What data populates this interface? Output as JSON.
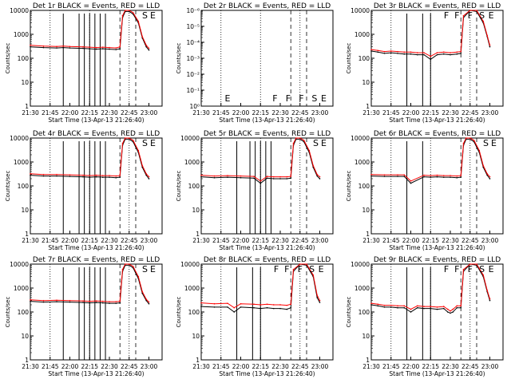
{
  "figure": {
    "colors": {
      "events": "#000000",
      "lld": "#ff0000",
      "background": "#ffffff"
    },
    "xlabel": "Start Time (13-Apr-13 21:26:40)",
    "ylabel": "Counts/sec",
    "xticks": [
      "21:30",
      "21:45",
      "22:00",
      "22:15",
      "22:30",
      "22:45",
      "23:00"
    ],
    "xrange_minutes": [
      0,
      100
    ],
    "marker_lines": {
      "dotted": [
        "21:45",
        "22:15",
        "22:45"
      ],
      "dashed": [
        "22:38",
        "22:50"
      ]
    }
  },
  "chart_data": [
    {
      "type": "line",
      "title": "Det 1r BLACK = Events, RED = LLD",
      "yscale": "log",
      "ylim": [
        1,
        10000
      ],
      "yticks": [
        "1",
        "10",
        "100",
        "1000",
        "10000"
      ],
      "flags": [
        "S",
        "E"
      ],
      "series": [
        {
          "name": "Events",
          "x": [
            0,
            10,
            20,
            25,
            30,
            40,
            45,
            50,
            55,
            60,
            65,
            68,
            70,
            72,
            75,
            78,
            82,
            85,
            88,
            90
          ],
          "y": [
            300,
            280,
            270,
            280,
            270,
            260,
            250,
            240,
            250,
            240,
            230,
            250,
            5000,
            9000,
            9000,
            7000,
            3000,
            700,
            300,
            220
          ]
        },
        {
          "name": "LLD",
          "x": [
            0,
            10,
            20,
            25,
            30,
            40,
            45,
            50,
            55,
            60,
            65,
            68,
            70,
            72,
            75,
            78,
            82,
            85,
            88,
            90
          ],
          "y": [
            350,
            320,
            310,
            320,
            310,
            300,
            290,
            280,
            290,
            280,
            270,
            300,
            6000,
            11000,
            11000,
            8000,
            3500,
            800,
            350,
            260
          ]
        }
      ],
      "gaps": [
        25,
        37,
        41,
        45,
        49,
        53,
        57
      ]
    },
    {
      "type": "line",
      "title": "Det 2r BLACK = Events, RED = LLD",
      "yscale": "log",
      "ylim": [
        1,
        1e-06
      ],
      "yticks": [
        "10⁰",
        "10⁻¹",
        "10⁻²",
        "10⁻³",
        "10⁻⁴",
        "10⁻⁵",
        "10⁻⁶"
      ],
      "flags": [
        "E",
        "F",
        "F",
        "F",
        "S",
        "E"
      ],
      "series": [],
      "gaps": []
    },
    {
      "type": "line",
      "title": "Det 3r BLACK = Events, RED = LLD",
      "yscale": "log",
      "ylim": [
        1,
        10000
      ],
      "yticks": [
        "1",
        "10",
        "100",
        "1000",
        "10000"
      ],
      "flags": [
        "F",
        "F",
        "F",
        "S",
        "E"
      ],
      "series": [
        {
          "name": "Events",
          "x": [
            0,
            5,
            10,
            15,
            20,
            25,
            30,
            35,
            40,
            45,
            50,
            55,
            60,
            65,
            68,
            70,
            75,
            80,
            85,
            88,
            90
          ],
          "y": [
            200,
            180,
            160,
            170,
            160,
            150,
            150,
            140,
            140,
            90,
            140,
            150,
            140,
            150,
            160,
            5000,
            10000,
            9000,
            3000,
            800,
            300
          ]
        },
        {
          "name": "LLD",
          "x": [
            0,
            5,
            10,
            15,
            20,
            25,
            30,
            35,
            40,
            45,
            50,
            55,
            60,
            65,
            68,
            70,
            75,
            80,
            85,
            88,
            90
          ],
          "y": [
            230,
            210,
            190,
            200,
            190,
            180,
            180,
            170,
            170,
            120,
            170,
            180,
            170,
            180,
            190,
            6000,
            12000,
            10000,
            3500,
            900,
            350
          ]
        }
      ],
      "gaps": [
        27,
        39,
        45
      ]
    },
    {
      "type": "line",
      "title": "Det 4r BLACK = Events, RED = LLD",
      "yscale": "log",
      "ylim": [
        1,
        10000
      ],
      "yticks": [
        "1",
        "10",
        "100",
        "1000",
        "10000"
      ],
      "flags": [
        "S",
        "E"
      ],
      "series": [
        {
          "name": "Events",
          "x": [
            0,
            10,
            20,
            30,
            40,
            45,
            50,
            55,
            60,
            65,
            68,
            70,
            72,
            75,
            78,
            82,
            85,
            88,
            90
          ],
          "y": [
            280,
            260,
            260,
            250,
            240,
            230,
            240,
            230,
            230,
            220,
            230,
            5000,
            9000,
            9000,
            7000,
            2500,
            600,
            280,
            200
          ]
        },
        {
          "name": "LLD",
          "x": [
            0,
            10,
            20,
            30,
            40,
            45,
            50,
            55,
            60,
            65,
            68,
            70,
            72,
            75,
            78,
            82,
            85,
            88,
            90
          ],
          "y": [
            320,
            300,
            300,
            290,
            280,
            270,
            280,
            270,
            270,
            260,
            270,
            6000,
            11000,
            11000,
            8000,
            3000,
            700,
            320,
            240
          ]
        }
      ],
      "gaps": [
        25,
        37,
        41,
        45,
        49,
        53,
        57
      ]
    },
    {
      "type": "line",
      "title": "Det 5r BLACK = Events, RED = LLD",
      "yscale": "log",
      "ylim": [
        1,
        10000
      ],
      "yticks": [
        "1",
        "10",
        "100",
        "1000",
        "10000"
      ],
      "flags": [
        "S",
        "E"
      ],
      "series": [
        {
          "name": "Events",
          "x": [
            0,
            10,
            20,
            30,
            40,
            45,
            50,
            55,
            60,
            65,
            68,
            70,
            72,
            75,
            78,
            82,
            85,
            88,
            90
          ],
          "y": [
            240,
            220,
            230,
            220,
            210,
            130,
            210,
            200,
            200,
            200,
            210,
            5000,
            9000,
            9000,
            7000,
            2500,
            600,
            260,
            200
          ]
        },
        {
          "name": "LLD",
          "x": [
            0,
            10,
            20,
            30,
            40,
            45,
            50,
            55,
            60,
            65,
            68,
            70,
            72,
            75,
            78,
            82,
            85,
            88,
            90
          ],
          "y": [
            280,
            260,
            270,
            260,
            250,
            160,
            250,
            240,
            240,
            240,
            250,
            6000,
            11000,
            11000,
            8000,
            3000,
            700,
            300,
            240
          ]
        }
      ],
      "gaps": [
        27,
        37,
        41,
        45,
        49,
        53
      ]
    },
    {
      "type": "line",
      "title": "Det 6r BLACK = Events, RED = LLD",
      "yscale": "log",
      "ylim": [
        1,
        10000
      ],
      "yticks": [
        "1",
        "10",
        "100",
        "1000",
        "10000"
      ],
      "flags": [
        "S",
        "E"
      ],
      "series": [
        {
          "name": "Events",
          "x": [
            0,
            10,
            20,
            25,
            30,
            40,
            45,
            50,
            55,
            60,
            65,
            68,
            70,
            72,
            75,
            78,
            82,
            85,
            88,
            90
          ],
          "y": [
            260,
            250,
            250,
            250,
            130,
            240,
            230,
            240,
            230,
            230,
            220,
            230,
            5000,
            9000,
            9000,
            7000,
            2500,
            600,
            280,
            200
          ]
        },
        {
          "name": "LLD",
          "x": [
            0,
            10,
            20,
            25,
            30,
            40,
            45,
            50,
            55,
            60,
            65,
            68,
            70,
            72,
            75,
            78,
            82,
            85,
            88,
            90
          ],
          "y": [
            300,
            290,
            290,
            290,
            160,
            280,
            270,
            280,
            270,
            270,
            260,
            270,
            6000,
            11000,
            11000,
            8000,
            3000,
            700,
            320,
            240
          ]
        }
      ],
      "gaps": [
        27,
        39
      ]
    },
    {
      "type": "line",
      "title": "Det 7r BLACK = Events, RED = LLD",
      "yscale": "log",
      "ylim": [
        1,
        10000
      ],
      "yticks": [
        "1",
        "10",
        "100",
        "1000",
        "10000"
      ],
      "flags": [
        "S",
        "E"
      ],
      "series": [
        {
          "name": "Events",
          "x": [
            0,
            10,
            20,
            30,
            40,
            45,
            50,
            55,
            60,
            65,
            68,
            70,
            72,
            75,
            78,
            82,
            85,
            88,
            90
          ],
          "y": [
            280,
            260,
            270,
            260,
            250,
            240,
            250,
            240,
            230,
            230,
            240,
            5000,
            9000,
            9000,
            7000,
            2500,
            600,
            300,
            220
          ]
        },
        {
          "name": "LLD",
          "x": [
            0,
            10,
            20,
            30,
            40,
            45,
            50,
            55,
            60,
            65,
            68,
            70,
            72,
            75,
            78,
            82,
            85,
            88,
            90
          ],
          "y": [
            320,
            300,
            310,
            300,
            290,
            280,
            290,
            280,
            270,
            270,
            280,
            6000,
            11000,
            11000,
            8000,
            3000,
            700,
            340,
            260
          ]
        }
      ],
      "gaps": [
        25,
        37,
        41,
        45,
        49,
        53,
        57
      ]
    },
    {
      "type": "line",
      "title": "Det 8r BLACK = Events, RED = LLD",
      "yscale": "log",
      "ylim": [
        1,
        10000
      ],
      "yticks": [
        "1",
        "10",
        "100",
        "1000",
        "10000"
      ],
      "flags": [
        "F",
        "F",
        "F",
        "S",
        "E"
      ],
      "series": [
        {
          "name": "Events",
          "x": [
            0,
            10,
            20,
            25,
            30,
            40,
            45,
            50,
            55,
            60,
            65,
            68,
            70,
            75,
            80,
            85,
            88,
            90
          ],
          "y": [
            170,
            160,
            160,
            100,
            160,
            150,
            140,
            150,
            140,
            140,
            130,
            150,
            5000,
            10000,
            9000,
            3000,
            400,
            250
          ]
        },
        {
          "name": "LLD",
          "x": [
            0,
            10,
            20,
            25,
            30,
            40,
            45,
            50,
            55,
            60,
            65,
            68,
            70,
            75,
            80,
            85,
            88,
            90
          ],
          "y": [
            240,
            220,
            230,
            150,
            220,
            210,
            200,
            210,
            200,
            200,
            190,
            210,
            6000,
            12000,
            10000,
            3500,
            500,
            300
          ]
        }
      ],
      "gaps": [
        27,
        39,
        45
      ]
    },
    {
      "type": "line",
      "title": "Det 9r BLACK = Events, RED = LLD",
      "yscale": "log",
      "ylim": [
        1,
        10000
      ],
      "yticks": [
        "1",
        "10",
        "100",
        "1000",
        "10000"
      ],
      "flags": [
        "F",
        "F",
        "F",
        "S",
        "E"
      ],
      "series": [
        {
          "name": "Events",
          "x": [
            0,
            5,
            10,
            15,
            20,
            25,
            30,
            35,
            40,
            45,
            50,
            55,
            58,
            60,
            62,
            65,
            68,
            70,
            75,
            80,
            85,
            88,
            90
          ],
          "y": [
            200,
            180,
            160,
            160,
            150,
            150,
            100,
            150,
            140,
            140,
            130,
            140,
            100,
            90,
            100,
            150,
            150,
            5000,
            10000,
            9000,
            3000,
            700,
            300
          ]
        },
        {
          "name": "LLD",
          "x": [
            0,
            5,
            10,
            15,
            20,
            25,
            30,
            35,
            40,
            45,
            50,
            55,
            58,
            60,
            62,
            65,
            68,
            70,
            75,
            80,
            85,
            88,
            90
          ],
          "y": [
            230,
            210,
            190,
            190,
            180,
            180,
            130,
            180,
            170,
            170,
            160,
            170,
            130,
            110,
            130,
            180,
            180,
            6000,
            12000,
            10000,
            3500,
            800,
            350
          ]
        }
      ],
      "gaps": [
        27,
        39,
        45
      ]
    }
  ]
}
